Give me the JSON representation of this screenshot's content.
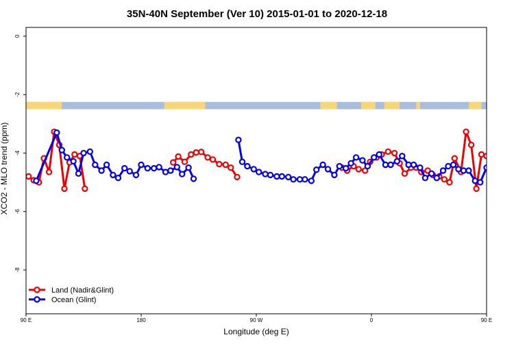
{
  "chart_data": {
    "type": "line",
    "title": "35N-40N September (Ver 10)   2015-01-01 to 2020-12-18",
    "xlabel": "Longitude (deg E)",
    "ylabel": "XCO2 - MLO trend (ppm)",
    "xlim": [
      90,
      450
    ],
    "ylim": [
      -9.5,
      0.3
    ],
    "x_ticks": [
      {
        "value": 90,
        "label": "90 E"
      },
      {
        "value": 180,
        "label": "180"
      },
      {
        "value": 270,
        "label": "90 W"
      },
      {
        "value": 360,
        "label": "0"
      },
      {
        "value": 450,
        "label": "90 E"
      },
      {
        "value": 540,
        "label": "180"
      }
    ],
    "y_ticks": [
      {
        "value": 0,
        "label": "0"
      },
      {
        "value": -2,
        "label": "-2"
      },
      {
        "value": -4,
        "label": "-4"
      },
      {
        "value": -6,
        "label": "-6"
      },
      {
        "value": -8,
        "label": "-8"
      }
    ],
    "grid": false,
    "legend_position": "bottom-left",
    "land_ocean_band": {
      "y_range": [
        -2.5,
        -2.25
      ],
      "land_color": "#f7d775",
      "ocean_color": "#a7bedf",
      "land_segments": [
        [
          90,
          118
        ],
        [
          198,
          230
        ],
        [
          320,
          333
        ],
        [
          352,
          363
        ],
        [
          370,
          382
        ],
        [
          395,
          398
        ],
        [
          436,
          446
        ]
      ]
    },
    "series": [
      {
        "name": "Land (Nadir&Glint)",
        "color": "#ee0000",
        "segments": [
          [
            [
              92,
              -4.8
            ],
            [
              96,
              -4.93
            ],
            [
              100,
              -5.0
            ],
            [
              104,
              -4.18
            ],
            [
              108,
              -4.65
            ],
            [
              112,
              -3.27
            ],
            [
              116,
              -3.72
            ],
            [
              120,
              -5.22
            ],
            [
              124,
              -4.32
            ],
            [
              128,
              -4.05
            ],
            [
              132,
              -4.1
            ],
            [
              136,
              -5.22
            ]
          ],
          [
            [
              205,
              -4.32
            ],
            [
              209,
              -4.12
            ],
            [
              214,
              -4.3
            ],
            [
              219,
              -4.05
            ],
            [
              223,
              -3.98
            ],
            [
              227,
              -3.96
            ],
            [
              232,
              -4.15
            ],
            [
              236,
              -4.22
            ],
            [
              241,
              -4.38
            ],
            [
              246,
              -4.4
            ],
            [
              250,
              -4.5
            ],
            [
              255,
              -4.82
            ]
          ],
          [
            [
              337,
              -4.5
            ],
            [
              341,
              -4.6
            ],
            [
              346,
              -4.45
            ],
            [
              350,
              -4.55
            ],
            [
              355,
              -4.6
            ],
            [
              359,
              -4.3
            ],
            [
              364,
              -4.15
            ],
            [
              368,
              -4.05
            ],
            [
              373,
              -3.95
            ],
            [
              378,
              -4.0
            ],
            [
              382,
              -4.35
            ],
            [
              386,
              -4.7
            ],
            [
              391,
              -4.5
            ],
            [
              395,
              -4.5
            ],
            [
              399,
              -4.65
            ],
            [
              404,
              -4.6
            ],
            [
              408,
              -4.75
            ],
            [
              413,
              -4.8
            ],
            [
              417,
              -4.9
            ],
            [
              421,
              -5.0
            ],
            [
              425,
              -4.18
            ],
            [
              430,
              -4.65
            ],
            [
              434,
              -3.27
            ],
            [
              438,
              -3.72
            ],
            [
              442,
              -5.22
            ],
            [
              446,
              -4.05
            ],
            [
              450,
              -4.1
            ]
          ]
        ]
      },
      {
        "name": "Ocean (Glint)",
        "color": "#0000ee",
        "segments": [
          [
            [
              98,
              -4.95
            ],
            [
              114,
              -3.3
            ],
            [
              118,
              -3.9
            ],
            [
              122,
              -4.15
            ],
            [
              127,
              -4.28
            ],
            [
              131,
              -4.7
            ],
            [
              135,
              -4.0
            ],
            [
              140,
              -3.95
            ],
            [
              144,
              -4.4
            ],
            [
              149,
              -4.6
            ],
            [
              153,
              -4.4
            ],
            [
              158,
              -4.75
            ],
            [
              162,
              -4.85
            ],
            [
              167,
              -4.52
            ],
            [
              171,
              -4.62
            ],
            [
              176,
              -4.75
            ],
            [
              180,
              -4.4
            ],
            [
              185,
              -4.52
            ],
            [
              190,
              -4.52
            ],
            [
              194,
              -4.48
            ],
            [
              199,
              -4.65
            ],
            [
              203,
              -4.6
            ],
            [
              208,
              -4.48
            ],
            [
              212,
              -4.72
            ],
            [
              217,
              -4.5
            ],
            [
              221,
              -4.88
            ]
          ],
          [
            [
              256,
              -3.55
            ],
            [
              259,
              -4.3
            ],
            [
              263,
              -4.45
            ],
            [
              268,
              -4.55
            ],
            [
              272,
              -4.65
            ],
            [
              277,
              -4.72
            ],
            [
              281,
              -4.75
            ],
            [
              286,
              -4.8
            ],
            [
              290,
              -4.8
            ],
            [
              295,
              -4.82
            ],
            [
              299,
              -4.9
            ],
            [
              304,
              -4.9
            ],
            [
              308,
              -4.9
            ],
            [
              313,
              -4.95
            ],
            [
              317,
              -4.57
            ],
            [
              322,
              -4.4
            ],
            [
              326,
              -4.55
            ],
            [
              331,
              -4.75
            ],
            [
              335,
              -4.45
            ],
            [
              340,
              -4.52
            ],
            [
              344,
              -4.35
            ],
            [
              348,
              -4.15
            ],
            [
              353,
              -4.25
            ],
            [
              357,
              -4.45
            ],
            [
              362,
              -4.15
            ],
            [
              366,
              -4.05
            ],
            [
              371,
              -4.4
            ],
            [
              375,
              -4.4
            ],
            [
              380,
              -4.28
            ],
            [
              384,
              -4.1
            ],
            [
              389,
              -4.4
            ],
            [
              393,
              -4.4
            ],
            [
              398,
              -4.5
            ],
            [
              402,
              -4.85
            ],
            [
              407,
              -4.7
            ],
            [
              411,
              -4.85
            ],
            [
              416,
              -4.6
            ],
            [
              420,
              -4.45
            ],
            [
              424,
              -4.4
            ],
            [
              428,
              -4.55
            ],
            [
              432,
              -4.6
            ],
            [
              436,
              -4.6
            ],
            [
              441,
              -4.95
            ],
            [
              445,
              -5.0
            ],
            [
              450,
              -4.5
            ]
          ]
        ]
      }
    ]
  }
}
